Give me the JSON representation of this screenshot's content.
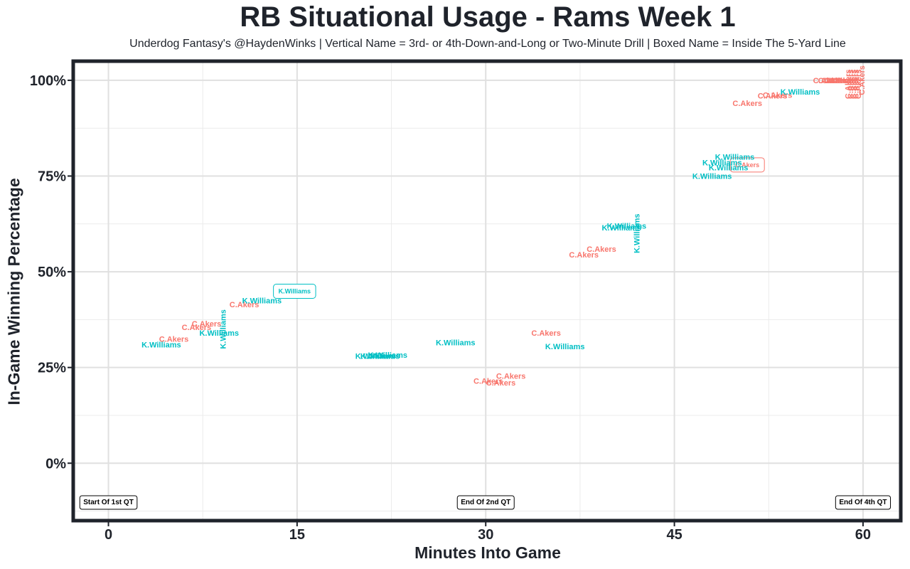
{
  "chart_data": {
    "type": "scatter",
    "title": "RB Situational Usage - Rams Week 1",
    "subtitle": "Underdog Fantasy's @HaydenWinks | Vertical Name = 3rd- or 4th-Down-and-Long or Two-Minute Drill | Boxed Name = Inside The 5-Yard Line",
    "xlabel": "Minutes Into Game",
    "ylabel": "In-Game Winning Percentage",
    "xlim": [
      -2.8,
      63
    ],
    "ylim": [
      -15,
      105
    ],
    "x_ticks": [
      0,
      15,
      30,
      45,
      60
    ],
    "x_tick_labels": [
      "0",
      "15",
      "30",
      "45",
      "60"
    ],
    "y_ticks": [
      0,
      25,
      50,
      75,
      100
    ],
    "y_tick_labels": [
      "0%",
      "25%",
      "50%",
      "75%",
      "100%"
    ],
    "grid": true,
    "colors": {
      "C.Akers": "#f8766d",
      "K.Williams": "#00bfc4"
    },
    "period_markers": [
      {
        "x": 0,
        "label": "Start Of 1st QT"
      },
      {
        "x": 30,
        "label": "End Of 2nd QT"
      },
      {
        "x": 60,
        "label": "End Of 4th QT"
      }
    ],
    "series": [
      {
        "name": "C.Akers",
        "points": [
          {
            "x": 5.2,
            "y": 32.5
          },
          {
            "x": 7.0,
            "y": 35.5
          },
          {
            "x": 7.8,
            "y": 36.5
          },
          {
            "x": 10.8,
            "y": 41.5
          },
          {
            "x": 34.8,
            "y": 34.0
          },
          {
            "x": 30.2,
            "y": 21.5
          },
          {
            "x": 31.2,
            "y": 21.0
          },
          {
            "x": 32.0,
            "y": 22.8
          },
          {
            "x": 37.8,
            "y": 54.5
          },
          {
            "x": 39.2,
            "y": 56.0
          },
          {
            "x": 50.8,
            "y": 78.0,
            "style": "boxed"
          },
          {
            "x": 50.8,
            "y": 94.0
          },
          {
            "x": 52.8,
            "y": 96.0
          },
          {
            "x": 53.2,
            "y": 96.2
          },
          {
            "x": 57.2,
            "y": 100.0
          },
          {
            "x": 57.6,
            "y": 100.0
          },
          {
            "x": 57.9,
            "y": 100.0
          },
          {
            "x": 58.1,
            "y": 100.0
          },
          {
            "x": 58.3,
            "y": 100.0
          },
          {
            "x": 58.5,
            "y": 100.0
          },
          {
            "x": 58.8,
            "y": 99.0,
            "style": "vertical"
          },
          {
            "x": 59.0,
            "y": 99.0,
            "style": "vertical"
          },
          {
            "x": 59.2,
            "y": 99.0,
            "style": "vertical"
          },
          {
            "x": 59.4,
            "y": 99.0,
            "style": "vertical"
          },
          {
            "x": 59.6,
            "y": 99.0,
            "style": "vertical"
          },
          {
            "x": 59.9,
            "y": 100.0,
            "style": "vertical"
          }
        ]
      },
      {
        "name": "K.Williams",
        "points": [
          {
            "x": 4.2,
            "y": 31.0
          },
          {
            "x": 8.8,
            "y": 34.0
          },
          {
            "x": 9.1,
            "y": 35.0,
            "style": "vertical"
          },
          {
            "x": 12.2,
            "y": 42.5
          },
          {
            "x": 14.8,
            "y": 45.0,
            "style": "boxed"
          },
          {
            "x": 21.2,
            "y": 28.0
          },
          {
            "x": 21.6,
            "y": 28.0
          },
          {
            "x": 22.2,
            "y": 28.3
          },
          {
            "x": 27.6,
            "y": 31.5
          },
          {
            "x": 36.3,
            "y": 30.5
          },
          {
            "x": 40.8,
            "y": 61.5
          },
          {
            "x": 41.2,
            "y": 62.0
          },
          {
            "x": 42.0,
            "y": 60.0,
            "style": "vertical"
          },
          {
            "x": 48.0,
            "y": 75.0
          },
          {
            "x": 48.8,
            "y": 78.5
          },
          {
            "x": 49.3,
            "y": 77.2
          },
          {
            "x": 49.8,
            "y": 80.0
          },
          {
            "x": 55.0,
            "y": 97.0
          }
        ]
      }
    ]
  }
}
